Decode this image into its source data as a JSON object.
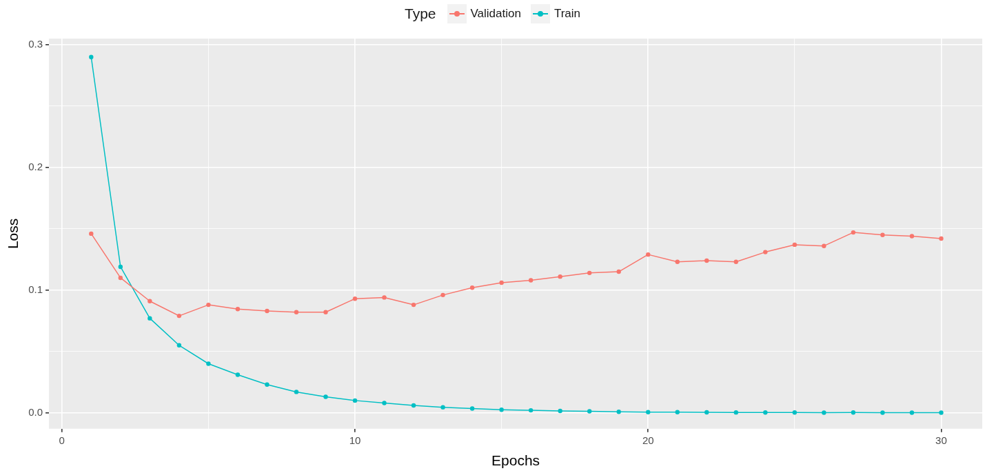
{
  "chart_data": {
    "type": "line",
    "xlabel": "Epochs",
    "ylabel": "Loss",
    "legend_title": "Type",
    "legend": "top",
    "grid": true,
    "marker": "circle",
    "line_style": "solid",
    "x": [
      1,
      2,
      3,
      4,
      5,
      6,
      7,
      8,
      9,
      10,
      11,
      12,
      13,
      14,
      15,
      16,
      17,
      18,
      19,
      20,
      21,
      22,
      23,
      24,
      25,
      26,
      27,
      28,
      29,
      30
    ],
    "xlim": [
      -0.44,
      31.4
    ],
    "xticks": [
      0,
      {
        "value": 5,
        "label": null
      },
      10,
      {
        "value": 15,
        "label": null
      },
      20,
      {
        "value": 25,
        "label": null
      },
      30
    ],
    "ylim": [
      -0.013,
      0.305
    ],
    "yticks": [
      "0.0",
      {
        "value": 0.05,
        "label": null
      },
      {
        "value": 0.1,
        "label": "0.1"
      },
      {
        "value": 0.15,
        "label": null
      },
      {
        "value": 0.2,
        "label": "0.2"
      },
      {
        "value": 0.25,
        "label": null
      },
      {
        "value": 0.3,
        "label": "0.3"
      }
    ],
    "series": [
      {
        "name": "Validation",
        "color": "#f8766d",
        "values": [
          0.146,
          0.11,
          0.091,
          0.079,
          0.088,
          0.0845,
          0.083,
          0.082,
          0.082,
          0.093,
          0.094,
          0.088,
          0.096,
          0.102,
          0.106,
          0.108,
          0.111,
          0.114,
          0.115,
          0.129,
          0.123,
          0.124,
          0.123,
          0.131,
          0.137,
          0.136,
          0.147,
          0.145,
          0.144,
          0.142
        ]
      },
      {
        "name": "Train",
        "color": "#00bfc4",
        "values": [
          0.29,
          0.119,
          0.077,
          0.055,
          0.04,
          0.031,
          0.023,
          0.017,
          0.013,
          0.01,
          0.008,
          0.006,
          0.0045,
          0.0035,
          0.0025,
          0.002,
          0.0015,
          0.0012,
          0.0008,
          0.0005,
          0.0005,
          0.0004,
          0.0003,
          0.0002,
          0.0002,
          0.0001,
          0.0002,
          0.0001,
          0.0001,
          0.0001
        ]
      }
    ]
  }
}
